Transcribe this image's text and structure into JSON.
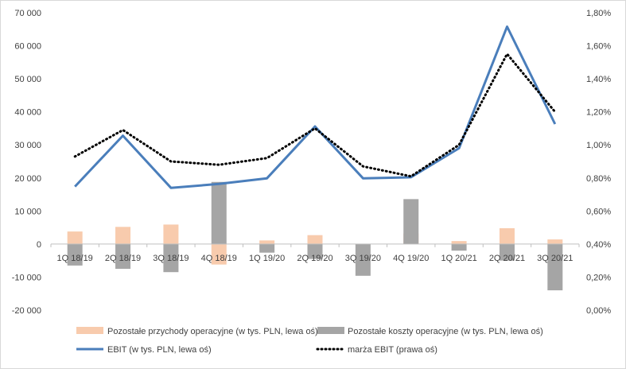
{
  "chart_data": {
    "type": "bar",
    "categories": [
      "1Q 18/19",
      "2Q 18/19",
      "3Q 18/19",
      "4Q 18/19",
      "1Q 19/20",
      "2Q 19/20",
      "3Q 19/20",
      "4Q 19/20",
      "1Q 20/21",
      "2Q 20/21",
      "3Q 20/21"
    ],
    "y_left": {
      "ylim": [
        -20000,
        70000
      ],
      "ticks": [
        70000,
        60000,
        50000,
        40000,
        30000,
        20000,
        10000,
        0,
        -10000,
        -20000
      ],
      "tick_labels": [
        "70 000",
        "60 000",
        "50 000",
        "40 000",
        "30 000",
        "20 000",
        "10 000",
        "0",
        "-10 000",
        "-20 000"
      ]
    },
    "y_right": {
      "ylim": [
        0,
        1.8
      ],
      "ticks": [
        1.8,
        1.6,
        1.4,
        1.2,
        1.0,
        0.8,
        0.6,
        0.4,
        0.2,
        0.0
      ],
      "tick_labels": [
        "1,80%",
        "1,60%",
        "1,40%",
        "1,20%",
        "1,00%",
        "0,80%",
        "0,60%",
        "0,40%",
        "0,20%",
        "0,00%"
      ]
    },
    "series": [
      {
        "name": "Pozostałe przychody operacyjne (w tys. PLN, lewa oś)",
        "type": "bar",
        "axis": "left",
        "color": "#f8cbad",
        "values": [
          3800,
          5200,
          5900,
          -6200,
          1100,
          2700,
          -200,
          3200,
          900,
          4800,
          1400
        ]
      },
      {
        "name": "Pozostałe koszty operacyjne (w tys. PLN, lewa oś)",
        "type": "bar",
        "axis": "left",
        "color": "#a5a5a5",
        "values": [
          -6500,
          -7500,
          -8500,
          18800,
          -2600,
          -4500,
          -9600,
          13600,
          -2000,
          -5000,
          -14000
        ]
      },
      {
        "name": "EBIT (w tys. PLN, lewa oś)",
        "type": "line",
        "axis": "left",
        "color": "#4a7ebb",
        "values": [
          17400,
          32800,
          17000,
          18200,
          19900,
          35600,
          19900,
          20200,
          29000,
          65800,
          36300
        ]
      },
      {
        "name": "marża EBIT (prawa oś)",
        "type": "line",
        "axis": "right",
        "color": "#000000",
        "values": [
          0.93,
          1.09,
          0.9,
          0.88,
          0.92,
          1.1,
          0.87,
          0.81,
          1.0,
          1.55,
          1.2
        ]
      }
    ],
    "legend_position": "bottom",
    "grid": false
  }
}
